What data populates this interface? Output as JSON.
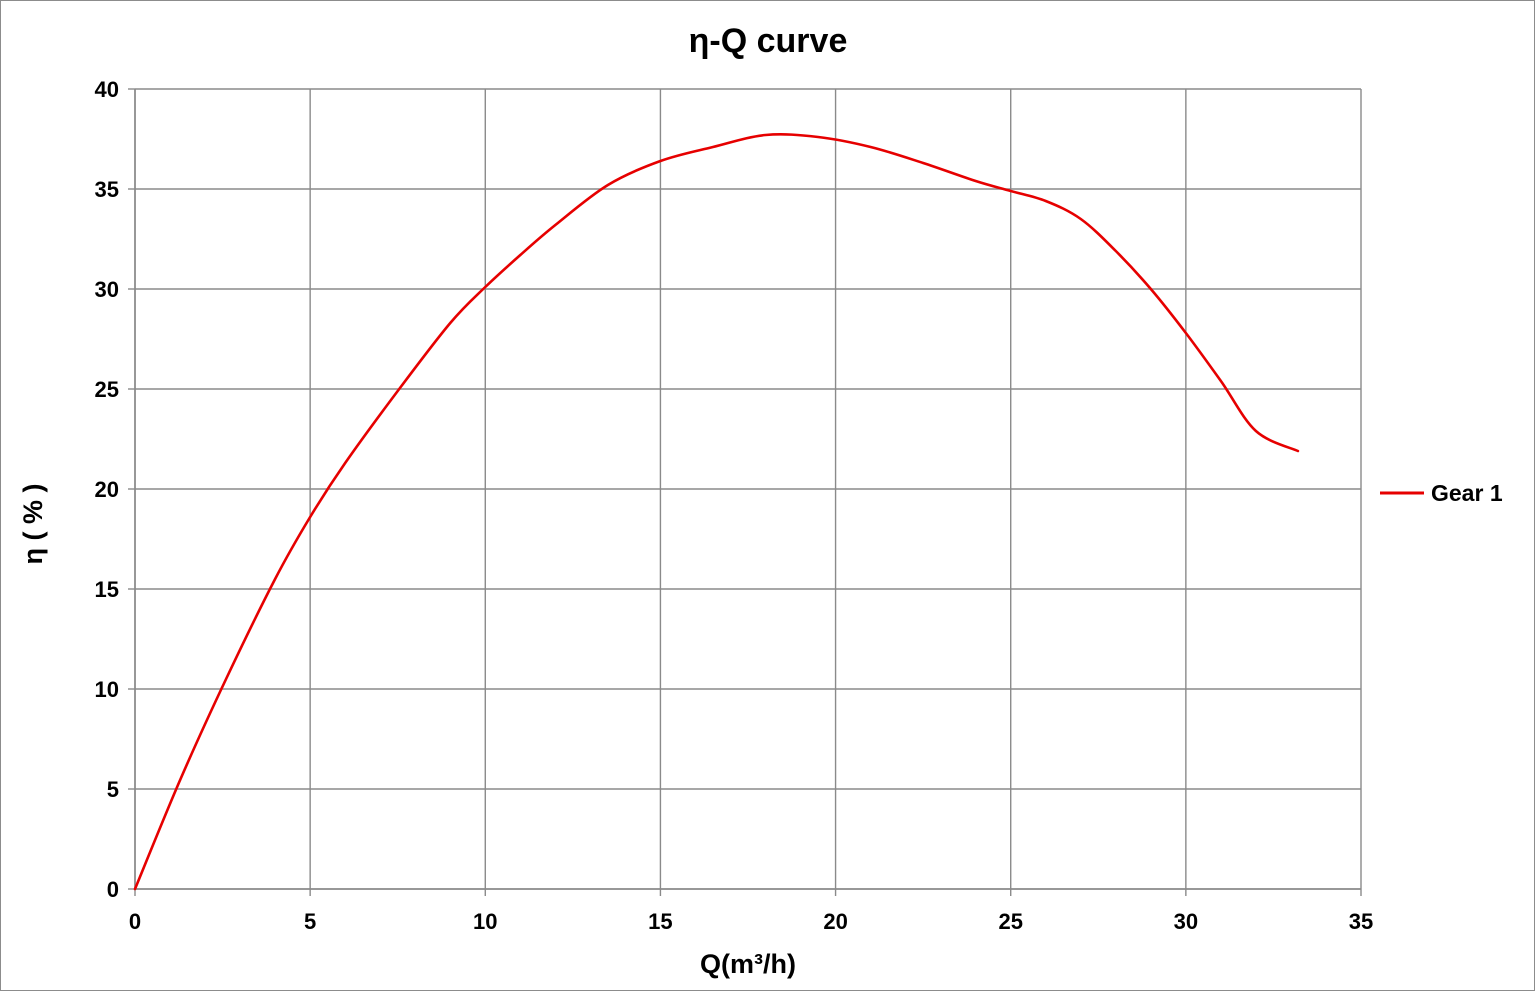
{
  "chart_data": {
    "type": "line",
    "title": "η-Q  curve",
    "xlabel": "Q(m³/h)",
    "ylabel": "η ( % )",
    "xlim": [
      0,
      35
    ],
    "ylim": [
      0,
      40
    ],
    "x_ticks": [
      "0",
      "5",
      "10",
      "15",
      "20",
      "25",
      "30",
      "35"
    ],
    "y_ticks": [
      "0",
      "5",
      "10",
      "15",
      "20",
      "25",
      "30",
      "35",
      "40"
    ],
    "grid": true,
    "legend_position": "right",
    "series": [
      {
        "name": "Gear 1",
        "color": "#e60000",
        "x": [
          0,
          1.3,
          2.6,
          4.0,
          5.0,
          6.0,
          7.5,
          9.0,
          10.0,
          11.0,
          12.0,
          13.5,
          15.0,
          16.5,
          18.0,
          19.5,
          21.0,
          22.5,
          24.0,
          25.0,
          26.0,
          27.0,
          28.0,
          29.0,
          30.0,
          31.0,
          32.0,
          33.2
        ],
        "y": [
          0,
          5.5,
          10.5,
          15.5,
          18.6,
          21.3,
          24.9,
          28.3,
          30.1,
          31.7,
          33.2,
          35.2,
          36.4,
          37.1,
          37.7,
          37.6,
          37.1,
          36.3,
          35.4,
          34.9,
          34.4,
          33.5,
          31.9,
          30.0,
          27.8,
          25.4,
          22.9,
          21.9
        ]
      }
    ]
  }
}
